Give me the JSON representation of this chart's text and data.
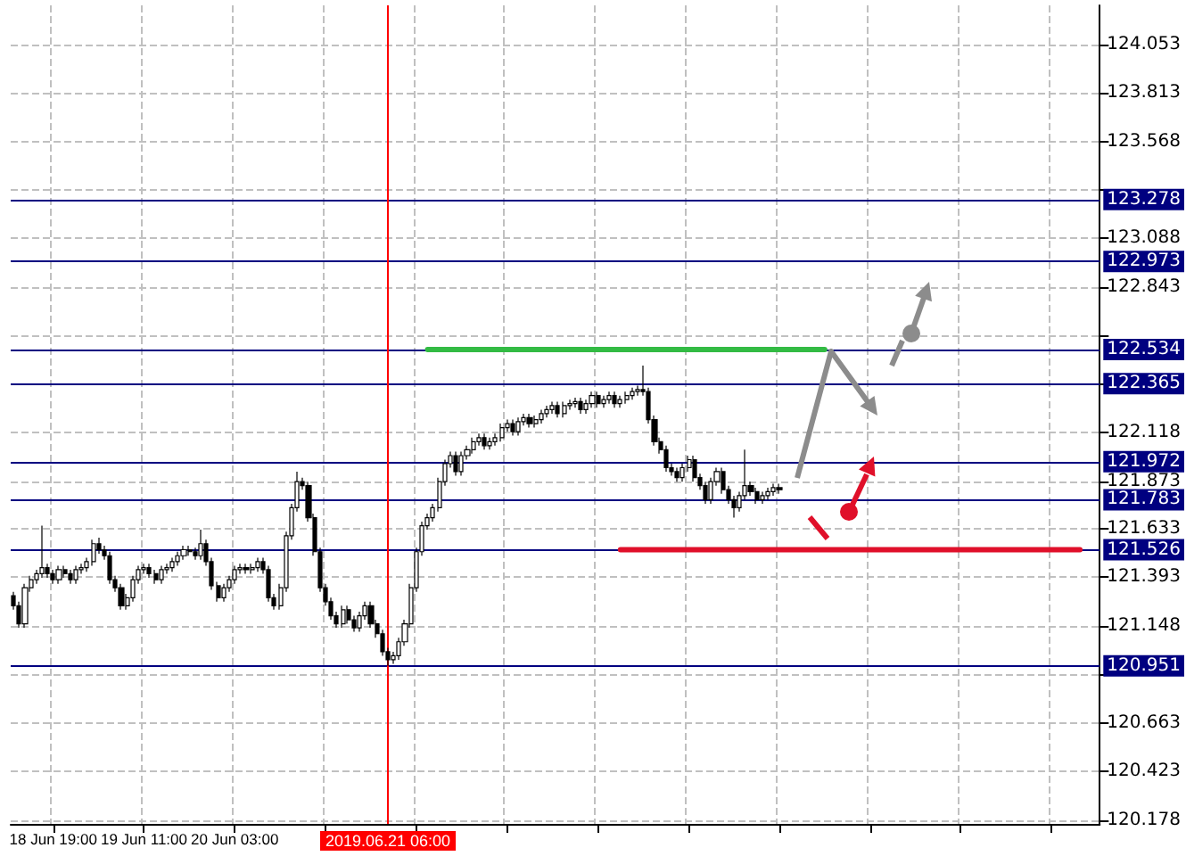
{
  "chart_data": {
    "type": "candlestick",
    "categories": [
      null,
      null,
      null,
      null,
      null,
      null,
      null,
      "18 Jun 19:00",
      null,
      null,
      null,
      null,
      null,
      null,
      null,
      null,
      null,
      null,
      null,
      null,
      null,
      null,
      null,
      "19 Jun 11:00",
      null,
      null,
      null,
      null,
      null,
      null,
      null,
      null,
      null,
      null,
      null,
      null,
      null,
      null,
      null,
      "20 Jun 03:00",
      null,
      null,
      null,
      null,
      null,
      null,
      null,
      null,
      null,
      null,
      null,
      null,
      null,
      null,
      null,
      null,
      null,
      null,
      null,
      null,
      null,
      null,
      null,
      null,
      null,
      null,
      "2019.06.21 06:00",
      null,
      null,
      null,
      null,
      null,
      null,
      null,
      null,
      null,
      null,
      null,
      null,
      null,
      null,
      null,
      null,
      null,
      null,
      null,
      null,
      null,
      null,
      null,
      null,
      null,
      null,
      null,
      null,
      null,
      null,
      null,
      null,
      null,
      null,
      null,
      null,
      null,
      null,
      null,
      null,
      null,
      null,
      null,
      null,
      null,
      null,
      null,
      null,
      null,
      null,
      null,
      null,
      null,
      null,
      null,
      null,
      null,
      null,
      null,
      null,
      null,
      null,
      null,
      null,
      null,
      null,
      null,
      null,
      null,
      null,
      null,
      null,
      null,
      null,
      null,
      null,
      null,
      null,
      null,
      null,
      null,
      null,
      null,
      null,
      null,
      null,
      null,
      null,
      null,
      null,
      null,
      null,
      null,
      null,
      null,
      null,
      null,
      null,
      null,
      null,
      null,
      null,
      null,
      null,
      null,
      null,
      null,
      null,
      null,
      null,
      null,
      null,
      null,
      null,
      null,
      null,
      null,
      null,
      null,
      null,
      null,
      null,
      null,
      null,
      null
    ],
    "ohlc": [
      [
        121.3,
        121.32,
        121.23,
        121.25
      ],
      [
        121.25,
        121.27,
        121.14,
        121.16
      ],
      [
        121.16,
        121.36,
        121.14,
        121.34
      ],
      [
        121.34,
        121.4,
        121.32,
        121.38
      ],
      [
        121.38,
        121.43,
        121.36,
        121.41
      ],
      [
        121.41,
        121.65,
        121.39,
        121.44
      ],
      [
        121.44,
        121.46,
        121.39,
        121.41
      ],
      [
        121.41,
        121.43,
        121.36,
        121.38
      ],
      [
        121.38,
        121.45,
        121.36,
        121.43
      ],
      [
        121.43,
        121.45,
        121.39,
        121.41
      ],
      [
        121.41,
        121.43,
        121.36,
        121.38
      ],
      [
        121.38,
        121.45,
        121.36,
        121.43
      ],
      [
        121.43,
        121.46,
        121.41,
        121.44
      ],
      [
        121.44,
        121.49,
        121.42,
        121.47
      ],
      [
        121.47,
        121.58,
        121.45,
        121.56
      ],
      [
        121.56,
        121.59,
        121.51,
        121.53
      ],
      [
        121.53,
        121.55,
        121.48,
        121.5
      ],
      [
        121.5,
        121.52,
        121.36,
        121.38
      ],
      [
        121.38,
        121.4,
        121.32,
        121.34
      ],
      [
        121.34,
        121.36,
        121.23,
        121.25
      ],
      [
        121.25,
        121.31,
        121.23,
        121.29
      ],
      [
        121.29,
        121.4,
        121.27,
        121.38
      ],
      [
        121.38,
        121.45,
        121.36,
        121.43
      ],
      [
        121.43,
        121.46,
        121.41,
        121.44
      ],
      [
        121.44,
        121.46,
        121.39,
        121.41
      ],
      [
        121.41,
        121.43,
        121.36,
        121.38
      ],
      [
        121.38,
        121.45,
        121.36,
        121.43
      ],
      [
        121.43,
        121.46,
        121.41,
        121.44
      ],
      [
        121.44,
        121.49,
        121.42,
        121.47
      ],
      [
        121.47,
        121.52,
        121.45,
        121.5
      ],
      [
        121.5,
        121.55,
        121.48,
        121.53
      ],
      [
        121.53,
        121.55,
        121.5,
        121.52
      ],
      [
        121.52,
        121.54,
        121.48,
        121.5
      ],
      [
        121.5,
        121.63,
        121.48,
        121.56
      ],
      [
        121.56,
        121.58,
        121.45,
        121.47
      ],
      [
        121.47,
        121.49,
        121.33,
        121.35
      ],
      [
        121.35,
        121.37,
        121.27,
        121.29
      ],
      [
        121.29,
        121.36,
        121.27,
        121.34
      ],
      [
        121.34,
        121.4,
        121.32,
        121.38
      ],
      [
        121.38,
        121.45,
        121.36,
        121.43
      ],
      [
        121.43,
        121.46,
        121.41,
        121.44
      ],
      [
        121.44,
        121.46,
        121.41,
        121.43
      ],
      [
        121.43,
        121.46,
        121.41,
        121.44
      ],
      [
        121.44,
        121.49,
        121.42,
        121.47
      ],
      [
        121.47,
        121.49,
        121.41,
        121.43
      ],
      [
        121.43,
        121.45,
        121.27,
        121.29
      ],
      [
        121.29,
        121.31,
        121.23,
        121.25
      ],
      [
        121.25,
        121.36,
        121.23,
        121.34
      ],
      [
        121.34,
        121.62,
        121.32,
        121.6
      ],
      [
        121.6,
        121.76,
        121.58,
        121.74
      ],
      [
        121.74,
        121.92,
        121.72,
        121.87
      ],
      [
        121.87,
        121.89,
        121.83,
        121.85
      ],
      [
        121.85,
        121.87,
        121.67,
        121.69
      ],
      [
        121.69,
        121.71,
        121.5,
        121.52
      ],
      [
        121.52,
        121.54,
        121.32,
        121.34
      ],
      [
        121.34,
        121.36,
        121.25,
        121.27
      ],
      [
        121.27,
        121.29,
        121.18,
        121.2
      ],
      [
        121.2,
        121.22,
        121.14,
        121.16
      ],
      [
        121.16,
        121.25,
        121.14,
        121.23
      ],
      [
        121.23,
        121.25,
        121.16,
        121.18
      ],
      [
        121.18,
        121.2,
        121.12,
        121.14
      ],
      [
        121.14,
        121.22,
        121.12,
        121.2
      ],
      [
        121.2,
        121.27,
        121.18,
        121.25
      ],
      [
        121.25,
        121.27,
        121.14,
        121.16
      ],
      [
        121.16,
        121.18,
        121.09,
        121.11
      ],
      [
        121.11,
        121.13,
        121.0,
        121.02
      ],
      [
        121.02,
        121.04,
        120.95,
        120.98
      ],
      [
        120.98,
        121.02,
        120.96,
        121.0
      ],
      [
        121.0,
        121.09,
        120.98,
        121.07
      ],
      [
        121.07,
        121.18,
        121.05,
        121.16
      ],
      [
        121.16,
        121.36,
        121.14,
        121.34
      ],
      [
        121.34,
        121.54,
        121.32,
        121.52
      ],
      [
        121.52,
        121.67,
        121.5,
        121.65
      ],
      [
        121.65,
        121.71,
        121.63,
        121.69
      ],
      [
        121.69,
        121.76,
        121.67,
        121.74
      ],
      [
        121.74,
        121.89,
        121.72,
        121.87
      ],
      [
        121.87,
        121.98,
        121.85,
        121.96
      ],
      [
        121.96,
        122.02,
        121.94,
        122.0
      ],
      [
        122.0,
        122.02,
        121.9,
        121.92
      ],
      [
        121.92,
        122.02,
        121.9,
        122.0
      ],
      [
        122.0,
        122.05,
        121.98,
        122.03
      ],
      [
        122.03,
        122.09,
        122.01,
        122.07
      ],
      [
        122.07,
        122.11,
        122.05,
        122.09
      ],
      [
        122.09,
        122.11,
        122.03,
        122.05
      ],
      [
        122.05,
        122.09,
        122.03,
        122.07
      ],
      [
        122.07,
        122.11,
        122.05,
        122.09
      ],
      [
        122.09,
        122.16,
        122.07,
        122.14
      ],
      [
        122.14,
        122.18,
        122.12,
        122.16
      ],
      [
        122.16,
        122.18,
        122.1,
        122.12
      ],
      [
        122.12,
        122.19,
        122.1,
        122.17
      ],
      [
        122.17,
        122.21,
        122.15,
        122.19
      ],
      [
        122.19,
        122.21,
        122.14,
        122.16
      ],
      [
        122.16,
        122.2,
        122.14,
        122.18
      ],
      [
        122.18,
        122.23,
        122.16,
        122.21
      ],
      [
        122.21,
        122.25,
        122.19,
        122.23
      ],
      [
        122.23,
        122.27,
        122.21,
        122.25
      ],
      [
        122.25,
        122.27,
        122.19,
        122.21
      ],
      [
        122.21,
        122.27,
        122.19,
        122.25
      ],
      [
        122.25,
        122.28,
        122.23,
        122.26
      ],
      [
        122.26,
        122.29,
        122.24,
        122.27
      ],
      [
        122.27,
        122.29,
        122.21,
        122.23
      ],
      [
        122.23,
        122.28,
        122.21,
        122.26
      ],
      [
        122.26,
        122.32,
        122.24,
        122.3
      ],
      [
        122.3,
        122.32,
        122.24,
        122.26
      ],
      [
        122.26,
        122.3,
        122.24,
        122.28
      ],
      [
        122.28,
        122.32,
        122.26,
        122.3
      ],
      [
        122.3,
        122.32,
        122.24,
        122.26
      ],
      [
        122.26,
        122.3,
        122.24,
        122.28
      ],
      [
        122.28,
        122.32,
        122.26,
        122.3
      ],
      [
        122.3,
        122.34,
        122.28,
        122.32
      ],
      [
        122.32,
        122.35,
        122.3,
        122.33
      ],
      [
        122.33,
        122.45,
        122.3,
        122.32
      ],
      [
        122.32,
        122.34,
        122.16,
        122.18
      ],
      [
        122.18,
        122.2,
        122.05,
        122.07
      ],
      [
        122.07,
        122.09,
        122.01,
        122.03
      ],
      [
        122.03,
        122.05,
        121.92,
        121.94
      ],
      [
        121.94,
        121.96,
        121.9,
        121.92
      ],
      [
        121.92,
        121.94,
        121.87,
        121.89
      ],
      [
        121.89,
        121.96,
        121.87,
        121.94
      ],
      [
        121.94,
        122.0,
        121.92,
        121.98
      ],
      [
        121.98,
        122.0,
        121.87,
        121.89
      ],
      [
        121.89,
        121.91,
        121.83,
        121.85
      ],
      [
        121.85,
        121.87,
        121.76,
        121.78
      ],
      [
        121.78,
        121.89,
        121.76,
        121.87
      ],
      [
        121.87,
        121.94,
        121.85,
        121.92
      ],
      [
        121.92,
        121.94,
        121.81,
        121.83
      ],
      [
        121.83,
        121.85,
        121.76,
        121.78
      ],
      [
        121.78,
        121.8,
        121.69,
        121.74
      ],
      [
        121.74,
        121.82,
        121.72,
        121.8
      ],
      [
        121.8,
        122.03,
        121.78,
        121.85
      ],
      [
        121.85,
        121.87,
        121.8,
        121.82
      ],
      [
        121.82,
        121.84,
        121.76,
        121.78
      ],
      [
        121.78,
        121.82,
        121.76,
        121.8
      ],
      [
        121.8,
        121.84,
        121.78,
        121.82
      ],
      [
        121.82,
        121.86,
        121.8,
        121.84
      ],
      [
        121.84,
        121.86,
        121.81,
        121.83
      ],
      null,
      null,
      null,
      null,
      null,
      null,
      null,
      null,
      null,
      null,
      null,
      null,
      null,
      null,
      null,
      null,
      null,
      null,
      null,
      null,
      null,
      null,
      null,
      null,
      null,
      null,
      null,
      null,
      null,
      null,
      null,
      null,
      null,
      null,
      null,
      null,
      null,
      null,
      null,
      null,
      null,
      null,
      null,
      null,
      null,
      null,
      null,
      null,
      null,
      null,
      null,
      null,
      null,
      null,
      null,
      null
    ],
    "series": [
      {
        "type": "line",
        "color": "#33bb44",
        "values": [
          null,
          null,
          null,
          null,
          null,
          null,
          null,
          null,
          null,
          null,
          null,
          null,
          null,
          null,
          null,
          null,
          null,
          null,
          null,
          null,
          null,
          null,
          null,
          null,
          null,
          null,
          null,
          null,
          null,
          null,
          null,
          null,
          null,
          null,
          null,
          null,
          null,
          null,
          null,
          null,
          null,
          null,
          null,
          null,
          null,
          null,
          null,
          null,
          null,
          null,
          null,
          null,
          null,
          null,
          null,
          null,
          null,
          null,
          null,
          null,
          null,
          null,
          null,
          null,
          null,
          null,
          null,
          null,
          null,
          null,
          null,
          null,
          null,
          122.53,
          122.53,
          122.53,
          122.53,
          122.53,
          122.53,
          122.53,
          122.53,
          122.53,
          122.53,
          122.53,
          122.53,
          122.53,
          122.53,
          122.53,
          122.53,
          122.53,
          122.53,
          122.53,
          122.53,
          122.53,
          122.53,
          122.53,
          122.53,
          122.53,
          122.53,
          122.53,
          122.53,
          122.53,
          122.53,
          122.53,
          122.53,
          122.53,
          122.53,
          122.53,
          122.53,
          122.53,
          122.53,
          122.53,
          122.53,
          122.53,
          122.53,
          122.53,
          122.53,
          122.53,
          122.53,
          122.53,
          122.53,
          122.53,
          122.53,
          122.53,
          122.53,
          122.53,
          122.53,
          122.53,
          122.53,
          122.53,
          122.53,
          122.53,
          122.53,
          122.53,
          122.53,
          122.53,
          122.53,
          122.53,
          122.53,
          122.53,
          122.53,
          122.53,
          122.53,
          122.53,
          null,
          null,
          null,
          null,
          null,
          null,
          null,
          null,
          null,
          null,
          null,
          null,
          null,
          null,
          null,
          null,
          null,
          null,
          null,
          null,
          null,
          null,
          null,
          null,
          null,
          null,
          null,
          null,
          null,
          null,
          null,
          null,
          null,
          null,
          null,
          null,
          null,
          null,
          null,
          null,
          null,
          null,
          null,
          null,
          null,
          null,
          null,
          null
        ]
      },
      {
        "type": "line",
        "color": "#e0102a",
        "values": [
          null,
          null,
          null,
          null,
          null,
          null,
          null,
          null,
          null,
          null,
          null,
          null,
          null,
          null,
          null,
          null,
          null,
          null,
          null,
          null,
          null,
          null,
          null,
          null,
          null,
          null,
          null,
          null,
          null,
          null,
          null,
          null,
          null,
          null,
          null,
          null,
          null,
          null,
          null,
          null,
          null,
          null,
          null,
          null,
          null,
          null,
          null,
          null,
          null,
          null,
          null,
          null,
          null,
          null,
          null,
          null,
          null,
          null,
          null,
          null,
          null,
          null,
          null,
          null,
          null,
          null,
          null,
          null,
          null,
          null,
          null,
          null,
          null,
          null,
          null,
          null,
          null,
          null,
          null,
          null,
          null,
          null,
          null,
          null,
          null,
          null,
          null,
          null,
          null,
          null,
          null,
          null,
          null,
          null,
          null,
          null,
          null,
          null,
          null,
          null,
          null,
          null,
          null,
          null,
          null,
          null,
          null,
          121.53,
          121.53,
          121.53,
          121.53,
          121.53,
          121.53,
          121.53,
          121.53,
          121.53,
          121.53,
          121.53,
          121.53,
          121.53,
          121.53,
          121.53,
          121.53,
          121.53,
          121.53,
          121.53,
          121.53,
          121.53,
          121.53,
          121.53,
          121.53,
          121.53,
          121.53,
          121.53,
          121.53,
          121.53,
          121.53,
          121.53,
          121.53,
          121.53,
          121.53,
          121.53,
          121.53,
          121.53,
          121.53,
          121.53,
          121.53,
          121.53,
          121.53,
          121.53,
          121.53,
          121.53,
          121.53,
          121.53,
          121.53,
          121.53,
          121.53,
          121.53,
          121.53,
          121.53,
          121.53,
          121.53,
          121.53,
          121.53,
          121.53,
          121.53,
          121.53,
          121.53,
          121.53,
          121.53,
          121.53,
          121.53,
          121.53,
          121.53,
          121.53,
          121.53,
          121.53,
          121.53,
          121.53,
          121.53,
          121.53,
          121.53,
          121.53,
          121.53,
          121.53,
          121.53,
          121.53,
          121.53,
          121.53,
          null,
          null,
          null
        ]
      }
    ],
    "ylim": [
      120.16,
      124.25
    ],
    "yticks": [
      120.178,
      120.423,
      120.663,
      {
        "value": 120.908,
        "label": null
      },
      121.148,
      121.393,
      121.633,
      121.873,
      122.118,
      {
        "value": 122.358,
        "label": null
      },
      {
        "value": 122.603,
        "label": null
      },
      122.843,
      123.088,
      {
        "value": 123.328,
        "label": null
      },
      123.568,
      123.813,
      124.053
    ],
    "ref_lines": [
      {
        "axis": "y",
        "value": 123.278,
        "label": "123.278",
        "color": "#000080"
      },
      {
        "axis": "y",
        "value": 122.973,
        "label": "122.973",
        "color": "#000080"
      },
      {
        "axis": "y",
        "value": 122.534,
        "label": "122.534",
        "color": "#000080"
      },
      {
        "axis": "y",
        "value": 122.365,
        "label": "122.365",
        "color": "#000080"
      },
      {
        "axis": "y",
        "value": 121.972,
        "label": "121.972",
        "color": "#000080"
      },
      {
        "axis": "y",
        "value": 121.783,
        "label": "121.783",
        "color": "#000080"
      },
      {
        "axis": "y",
        "value": 121.526,
        "label": "121.526",
        "color": "#000080"
      },
      {
        "axis": "y",
        "value": 120.951,
        "label": "120.951",
        "color": "#000080"
      },
      {
        "axis": "x",
        "value": "2019.06.21 06:00",
        "color": "#ff0000"
      }
    ],
    "grid": true
  }
}
